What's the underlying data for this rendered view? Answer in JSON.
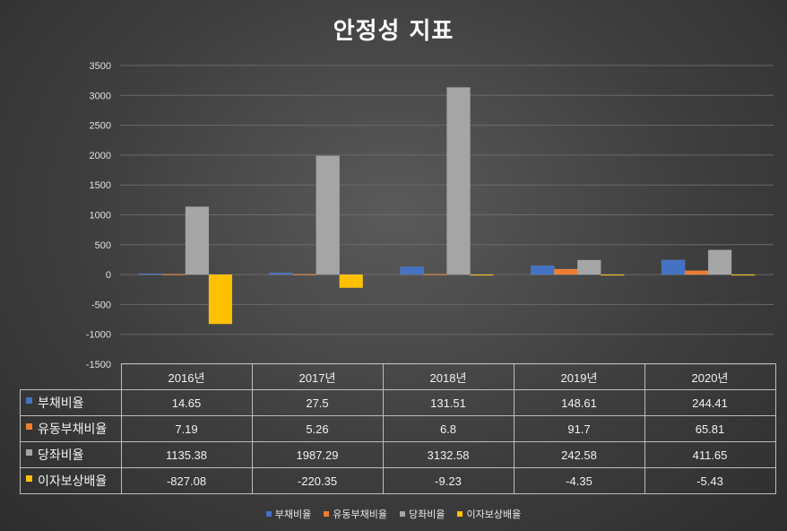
{
  "chart_data": {
    "type": "bar",
    "title": "안정성 지표",
    "categories": [
      "2016년",
      "2017년",
      "2018년",
      "2019년",
      "2020년"
    ],
    "series": [
      {
        "name": "부채비율",
        "color": "#4472C4",
        "values": [
          14.65,
          27.5,
          131.51,
          148.61,
          244.41
        ],
        "labels": [
          "14.65",
          "27.5",
          "131.51",
          "148.61",
          "244.41"
        ]
      },
      {
        "name": "유동부채비율",
        "color": "#ED7D31",
        "values": [
          7.19,
          5.26,
          6.8,
          91.7,
          65.81
        ],
        "labels": [
          "7.19",
          "5.26",
          "6.8",
          "91.7",
          "65.81"
        ]
      },
      {
        "name": "당좌비율",
        "color": "#A5A5A5",
        "values": [
          1135.38,
          1987.29,
          3132.58,
          242.58,
          411.65
        ],
        "labels": [
          "1135.38",
          "1987.29",
          "3132.58",
          "242.58",
          "411.65"
        ]
      },
      {
        "name": "이자보상배율",
        "color": "#FFC000",
        "values": [
          -827.08,
          -220.35,
          -9.23,
          -4.35,
          -5.43
        ],
        "labels": [
          "-827.08",
          "-220.35",
          "-9.23",
          "-4.35",
          "-5.43"
        ]
      }
    ],
    "ylim": [
      -1500,
      3500
    ],
    "yticks": [
      3500,
      3000,
      2500,
      2000,
      1500,
      1000,
      500,
      0,
      -500,
      -1000,
      -1500
    ],
    "grid": true,
    "legend": "bottom",
    "data_table": true
  }
}
